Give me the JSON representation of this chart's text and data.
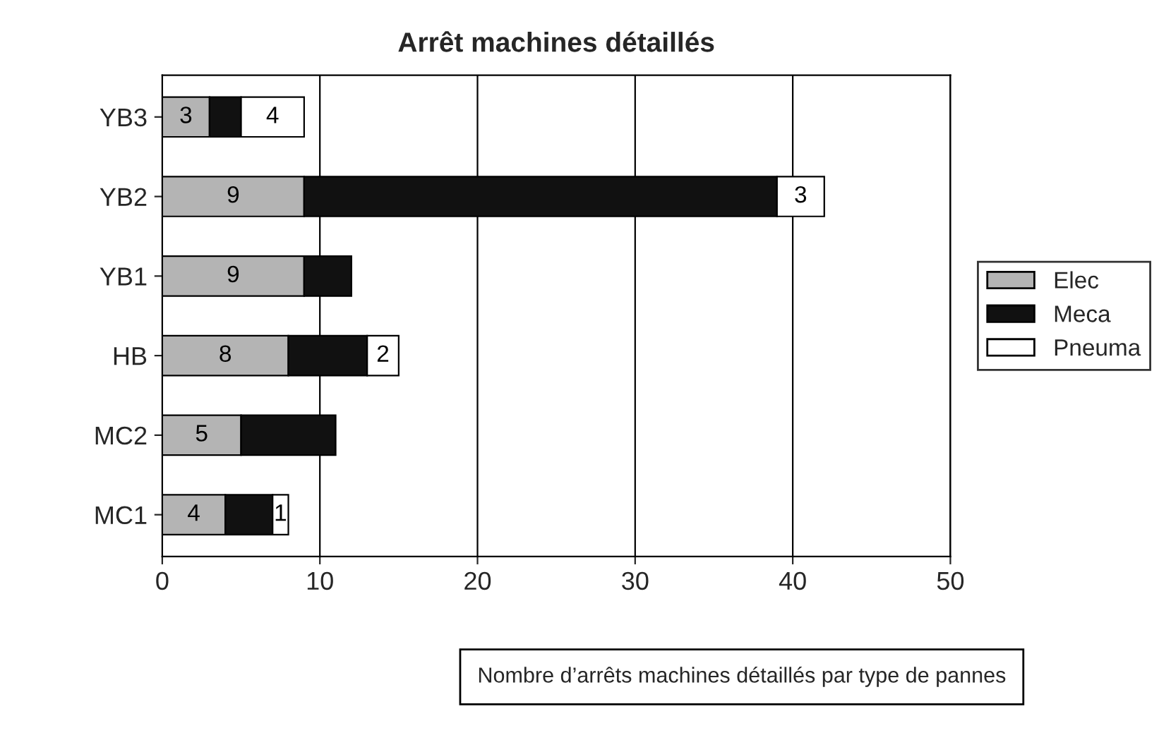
{
  "chart_data": {
    "type": "bar",
    "orientation": "horizontal",
    "stacked": true,
    "title": "Arrêt machines détaillés",
    "categories": [
      "YB3",
      "YB2",
      "YB1",
      "HB",
      "MC2",
      "MC1"
    ],
    "series": [
      {
        "name": "Elec",
        "color": "#b4b4b4",
        "values": [
          3,
          9,
          9,
          8,
          5,
          4
        ],
        "value_labels": [
          "3",
          "9",
          "9",
          "8",
          "5",
          "4"
        ]
      },
      {
        "name": "Meca",
        "color": "#111111",
        "values": [
          2,
          30,
          3,
          5,
          6,
          3
        ]
      },
      {
        "name": "Pneuma",
        "color": "#ffffff",
        "values": [
          4,
          3,
          null,
          2,
          null,
          1
        ],
        "value_labels": [
          "4",
          "3",
          null,
          "2",
          null,
          "1"
        ]
      }
    ],
    "xlim": [
      0,
      50
    ],
    "xticks": [
      0,
      10,
      20,
      30,
      40,
      50
    ],
    "grid": "x",
    "legend": "right",
    "annotations": [
      "Nombre d’arrêts machines détaillés par type de pannes"
    ]
  }
}
